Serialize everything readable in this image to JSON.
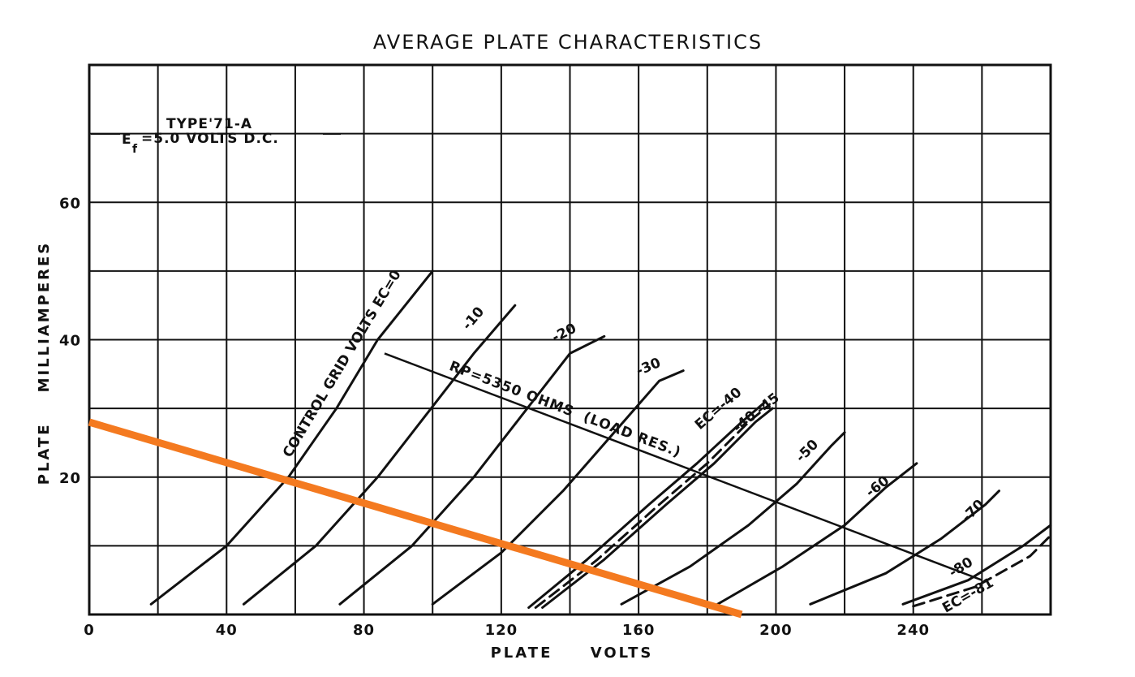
{
  "chart_data": {
    "type": "line",
    "title": "AVERAGE PLATE CHARACTERISTICS",
    "xlabel": "PLATE     VOLTS",
    "ylabel": "PLATE    MILLIAMPERES",
    "xlim": [
      0,
      280
    ],
    "ylim": [
      0,
      80
    ],
    "x_ticks": [
      0,
      40,
      80,
      120,
      160,
      200,
      240
    ],
    "x_tick_labels": [
      "0",
      "40",
      "80",
      "120",
      "160",
      "200",
      "240"
    ],
    "y_ticks": [
      20,
      40,
      60
    ],
    "y_tick_labels": [
      "20",
      "40",
      "60"
    ],
    "grid": true,
    "tube_label": {
      "type_line": "TYPE'71-A",
      "filament_line": "=5.0 VOLTS  D.C.",
      "filament_symbol": "E",
      "filament_sub": "f"
    },
    "series": [
      {
        "name": "EC=0",
        "label": "CONTROL GRID VOLTS EC=0",
        "style": "solid",
        "points": [
          [
            18,
            1.5
          ],
          [
            40,
            10
          ],
          [
            58,
            20
          ],
          [
            72,
            30
          ],
          [
            84,
            40
          ],
          [
            92,
            45
          ],
          [
            100,
            50
          ]
        ]
      },
      {
        "name": "-10",
        "label": "-10",
        "style": "solid",
        "points": [
          [
            45,
            1.5
          ],
          [
            66,
            10
          ],
          [
            84,
            20
          ],
          [
            98,
            29
          ],
          [
            112,
            38
          ],
          [
            124,
            45
          ]
        ]
      },
      {
        "name": "-20",
        "label": "-20",
        "style": "solid",
        "points": [
          [
            73,
            1.5
          ],
          [
            94,
            10
          ],
          [
            112,
            20
          ],
          [
            126,
            29
          ],
          [
            140,
            38
          ],
          [
            150,
            40.5
          ]
        ]
      },
      {
        "name": "-30",
        "label": "-30",
        "style": "solid",
        "points": [
          [
            100,
            1.5
          ],
          [
            120,
            9
          ],
          [
            138,
            18
          ],
          [
            152,
            26
          ],
          [
            166,
            34
          ],
          [
            173,
            35.5
          ]
        ]
      },
      {
        "name": "-40",
        "label": "EC=-40",
        "style": "solid",
        "points": [
          [
            128,
            1
          ],
          [
            145,
            8
          ],
          [
            163,
            16
          ],
          [
            177,
            22
          ],
          [
            190,
            28
          ],
          [
            197,
            31
          ]
        ]
      },
      {
        "name": "-40 (dashed)",
        "label": "-40",
        "style": "dashed",
        "points": [
          [
            130,
            1
          ],
          [
            148,
            8
          ],
          [
            166,
            16
          ],
          [
            180,
            22
          ],
          [
            192,
            28
          ],
          [
            198,
            30.5
          ]
        ]
      },
      {
        "name": "-45",
        "label": "-45",
        "style": "solid",
        "points": [
          [
            132,
            1
          ],
          [
            150,
            8
          ],
          [
            168,
            16
          ],
          [
            182,
            22
          ],
          [
            194,
            28
          ],
          [
            199,
            30
          ]
        ]
      },
      {
        "name": "-50",
        "label": "-50",
        "style": "solid",
        "points": [
          [
            155,
            1.5
          ],
          [
            175,
            7
          ],
          [
            192,
            13
          ],
          [
            206,
            19
          ],
          [
            216,
            24.5
          ],
          [
            220,
            26.5
          ]
        ]
      },
      {
        "name": "-60",
        "label": "-60",
        "style": "solid",
        "points": [
          [
            183,
            1.5
          ],
          [
            202,
            7
          ],
          [
            220,
            13
          ],
          [
            232,
            18.5
          ],
          [
            241,
            22
          ]
        ]
      },
      {
        "name": "-70",
        "label": "-70",
        "style": "solid",
        "points": [
          [
            210,
            1.5
          ],
          [
            232,
            6
          ],
          [
            248,
            11
          ],
          [
            261,
            16
          ],
          [
            265,
            18
          ]
        ]
      },
      {
        "name": "-80",
        "label": "-80",
        "style": "solid",
        "points": [
          [
            237,
            1.5
          ],
          [
            256,
            5
          ],
          [
            272,
            10
          ],
          [
            280,
            13
          ]
        ]
      },
      {
        "name": "-81",
        "label": "EC=-81",
        "style": "dashed",
        "points": [
          [
            240,
            1.2
          ],
          [
            258,
            4
          ],
          [
            274,
            8.5
          ],
          [
            280,
            11.5
          ]
        ]
      }
    ],
    "load_line": {
      "label": "RP=5350 OHMS  (LOAD RES.)",
      "color": "#111111",
      "points": [
        [
          86,
          38
        ],
        [
          260,
          5
        ]
      ]
    },
    "overlay_line": {
      "color": "#F47A20",
      "points": [
        [
          0,
          28
        ],
        [
          190,
          0
        ]
      ]
    }
  }
}
